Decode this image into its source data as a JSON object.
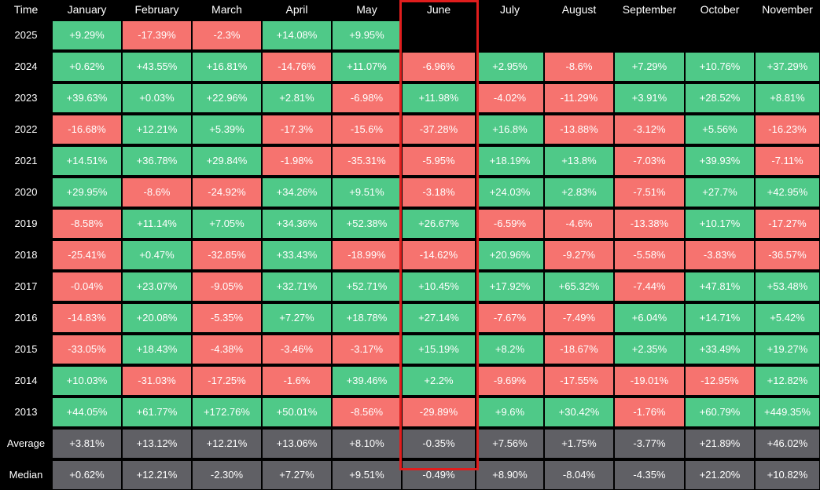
{
  "colors": {
    "positive": "#4fc988",
    "negative": "#f6736f",
    "stat": "#606065",
    "highlight": "#e01d1d",
    "background": "#000000"
  },
  "highlighted_month": "June",
  "chart_data": {
    "type": "table",
    "row_header": "Time",
    "columns": [
      "January",
      "February",
      "March",
      "April",
      "May",
      "June",
      "July",
      "August",
      "September",
      "October",
      "November"
    ],
    "rows": [
      {
        "label": "2025",
        "values": [
          "+9.29%",
          "-17.39%",
          "-2.3%",
          "+14.08%",
          "+9.95%",
          "",
          "",
          "",
          "",
          "",
          ""
        ]
      },
      {
        "label": "2024",
        "values": [
          "+0.62%",
          "+43.55%",
          "+16.81%",
          "-14.76%",
          "+11.07%",
          "-6.96%",
          "+2.95%",
          "-8.6%",
          "+7.29%",
          "+10.76%",
          "+37.29%"
        ]
      },
      {
        "label": "2023",
        "values": [
          "+39.63%",
          "+0.03%",
          "+22.96%",
          "+2.81%",
          "-6.98%",
          "+11.98%",
          "-4.02%",
          "-11.29%",
          "+3.91%",
          "+28.52%",
          "+8.81%"
        ]
      },
      {
        "label": "2022",
        "values": [
          "-16.68%",
          "+12.21%",
          "+5.39%",
          "-17.3%",
          "-15.6%",
          "-37.28%",
          "+16.8%",
          "-13.88%",
          "-3.12%",
          "+5.56%",
          "-16.23%"
        ]
      },
      {
        "label": "2021",
        "values": [
          "+14.51%",
          "+36.78%",
          "+29.84%",
          "-1.98%",
          "-35.31%",
          "-5.95%",
          "+18.19%",
          "+13.8%",
          "-7.03%",
          "+39.93%",
          "-7.11%"
        ]
      },
      {
        "label": "2020",
        "values": [
          "+29.95%",
          "-8.6%",
          "-24.92%",
          "+34.26%",
          "+9.51%",
          "-3.18%",
          "+24.03%",
          "+2.83%",
          "-7.51%",
          "+27.7%",
          "+42.95%"
        ]
      },
      {
        "label": "2019",
        "values": [
          "-8.58%",
          "+11.14%",
          "+7.05%",
          "+34.36%",
          "+52.38%",
          "+26.67%",
          "-6.59%",
          "-4.6%",
          "-13.38%",
          "+10.17%",
          "-17.27%"
        ]
      },
      {
        "label": "2018",
        "values": [
          "-25.41%",
          "+0.47%",
          "-32.85%",
          "+33.43%",
          "-18.99%",
          "-14.62%",
          "+20.96%",
          "-9.27%",
          "-5.58%",
          "-3.83%",
          "-36.57%"
        ]
      },
      {
        "label": "2017",
        "values": [
          "-0.04%",
          "+23.07%",
          "-9.05%",
          "+32.71%",
          "+52.71%",
          "+10.45%",
          "+17.92%",
          "+65.32%",
          "-7.44%",
          "+47.81%",
          "+53.48%"
        ]
      },
      {
        "label": "2016",
        "values": [
          "-14.83%",
          "+20.08%",
          "-5.35%",
          "+7.27%",
          "+18.78%",
          "+27.14%",
          "-7.67%",
          "-7.49%",
          "+6.04%",
          "+14.71%",
          "+5.42%"
        ]
      },
      {
        "label": "2015",
        "values": [
          "-33.05%",
          "+18.43%",
          "-4.38%",
          "-3.46%",
          "-3.17%",
          "+15.19%",
          "+8.2%",
          "-18.67%",
          "+2.35%",
          "+33.49%",
          "+19.27%"
        ]
      },
      {
        "label": "2014",
        "values": [
          "+10.03%",
          "-31.03%",
          "-17.25%",
          "-1.6%",
          "+39.46%",
          "+2.2%",
          "-9.69%",
          "-17.55%",
          "-19.01%",
          "-12.95%",
          "+12.82%"
        ]
      },
      {
        "label": "2013",
        "values": [
          "+44.05%",
          "+61.77%",
          "+172.76%",
          "+50.01%",
          "-8.56%",
          "-29.89%",
          "+9.6%",
          "+30.42%",
          "-1.76%",
          "+60.79%",
          "+449.35%"
        ]
      }
    ],
    "summary_rows": [
      {
        "label": "Average",
        "values": [
          "+3.81%",
          "+13.12%",
          "+12.21%",
          "+13.06%",
          "+8.10%",
          "-0.35%",
          "+7.56%",
          "+1.75%",
          "-3.77%",
          "+21.89%",
          "+46.02%"
        ]
      },
      {
        "label": "Median",
        "values": [
          "+0.62%",
          "+12.21%",
          "-2.30%",
          "+7.27%",
          "+9.51%",
          "-0.49%",
          "+8.90%",
          "-8.04%",
          "-4.35%",
          "+21.20%",
          "+10.82%"
        ]
      }
    ]
  }
}
